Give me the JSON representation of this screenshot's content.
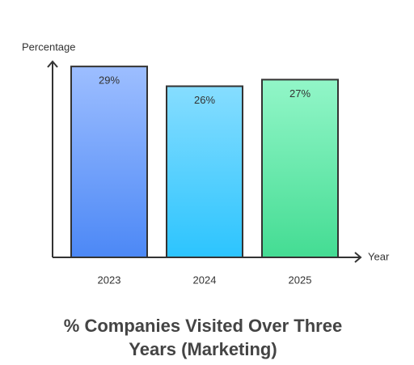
{
  "chart_data": {
    "type": "bar",
    "title": "% Companies Visited Over Three Years (Marketing)",
    "x_label": "Year",
    "y_label": "Percentage",
    "categories": [
      "2023",
      "2024",
      "2025"
    ],
    "values": [
      29,
      26,
      27
    ],
    "value_labels": [
      "29%",
      "26%",
      "27%"
    ],
    "colors": [
      [
        "#9dbeff",
        "#4c88f6"
      ],
      [
        "#86ddff",
        "#2cc4fe"
      ],
      [
        "#92f6c8",
        "#44dc93"
      ]
    ],
    "ylim": [
      0,
      30
    ]
  }
}
